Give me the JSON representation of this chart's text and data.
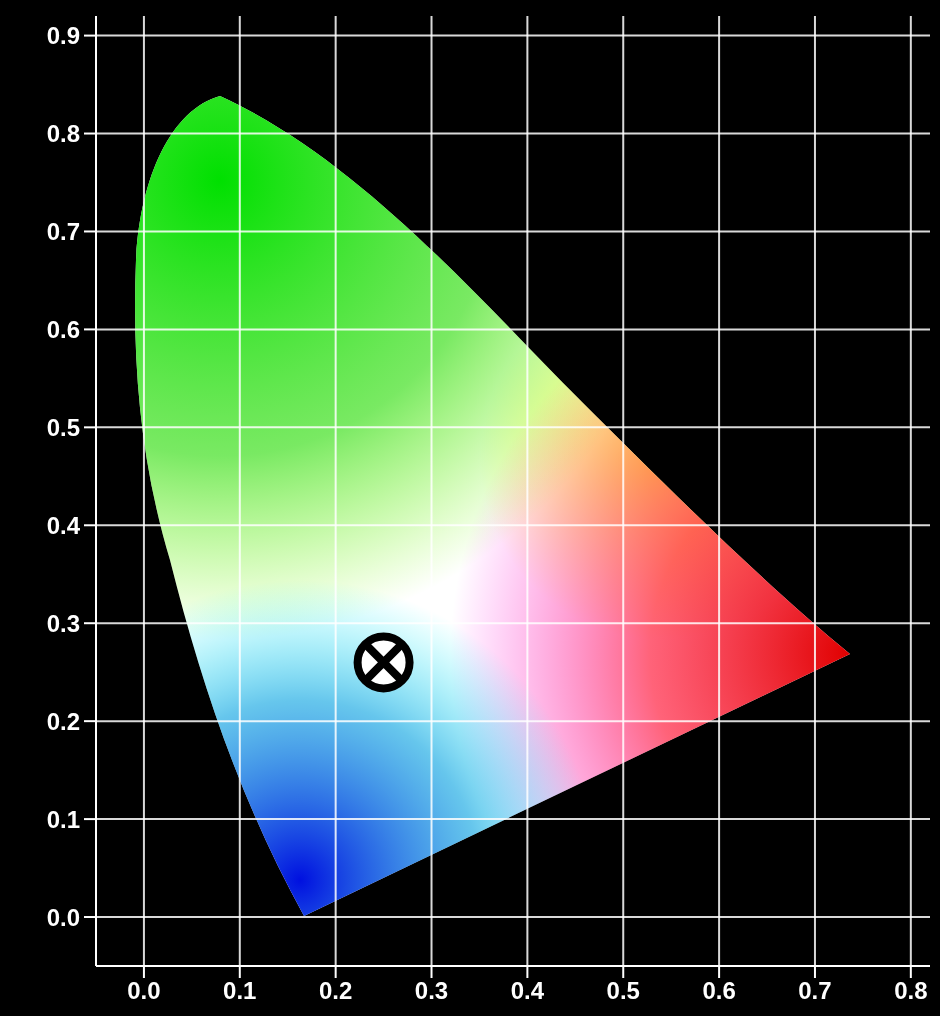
{
  "chart_data": {
    "type": "scatter",
    "series": [
      {
        "color": "#000000",
        "x": [
          0.25
        ],
        "values": [
          0.26
        ]
      }
    ],
    "xlim": [
      -0.05,
      0.82
    ],
    "ylim": [
      -0.05,
      0.92
    ],
    "xticks": [
      {
        "value": 0,
        "label": "0.0"
      },
      {
        "value": 0.1,
        "label": "0.1"
      },
      {
        "value": 0.2,
        "label": "0.2"
      },
      {
        "value": 0.3,
        "label": "0.3"
      },
      {
        "value": 0.4,
        "label": "0.4"
      },
      {
        "value": 0.5,
        "label": "0.5"
      },
      {
        "value": 0.6,
        "label": "0.6"
      },
      {
        "value": 0.7,
        "label": "0.7"
      },
      {
        "value": 0.8,
        "label": "0.8"
      }
    ],
    "yticks": [
      {
        "value": 0,
        "label": "0.0"
      },
      {
        "value": 0.1,
        "label": "0.1"
      },
      {
        "value": 0.2,
        "label": "0.2"
      },
      {
        "value": 0.3,
        "label": "0.3"
      },
      {
        "value": 0.4,
        "label": "0.4"
      },
      {
        "value": 0.5,
        "label": "0.5"
      },
      {
        "value": 0.6,
        "label": "0.6"
      },
      {
        "value": 0.7,
        "label": "0.7"
      },
      {
        "value": 0.8,
        "label": "0.8"
      },
      {
        "value": 0.9,
        "label": "0.9"
      }
    ],
    "grid": true,
    "marker": "circle"
  }
}
